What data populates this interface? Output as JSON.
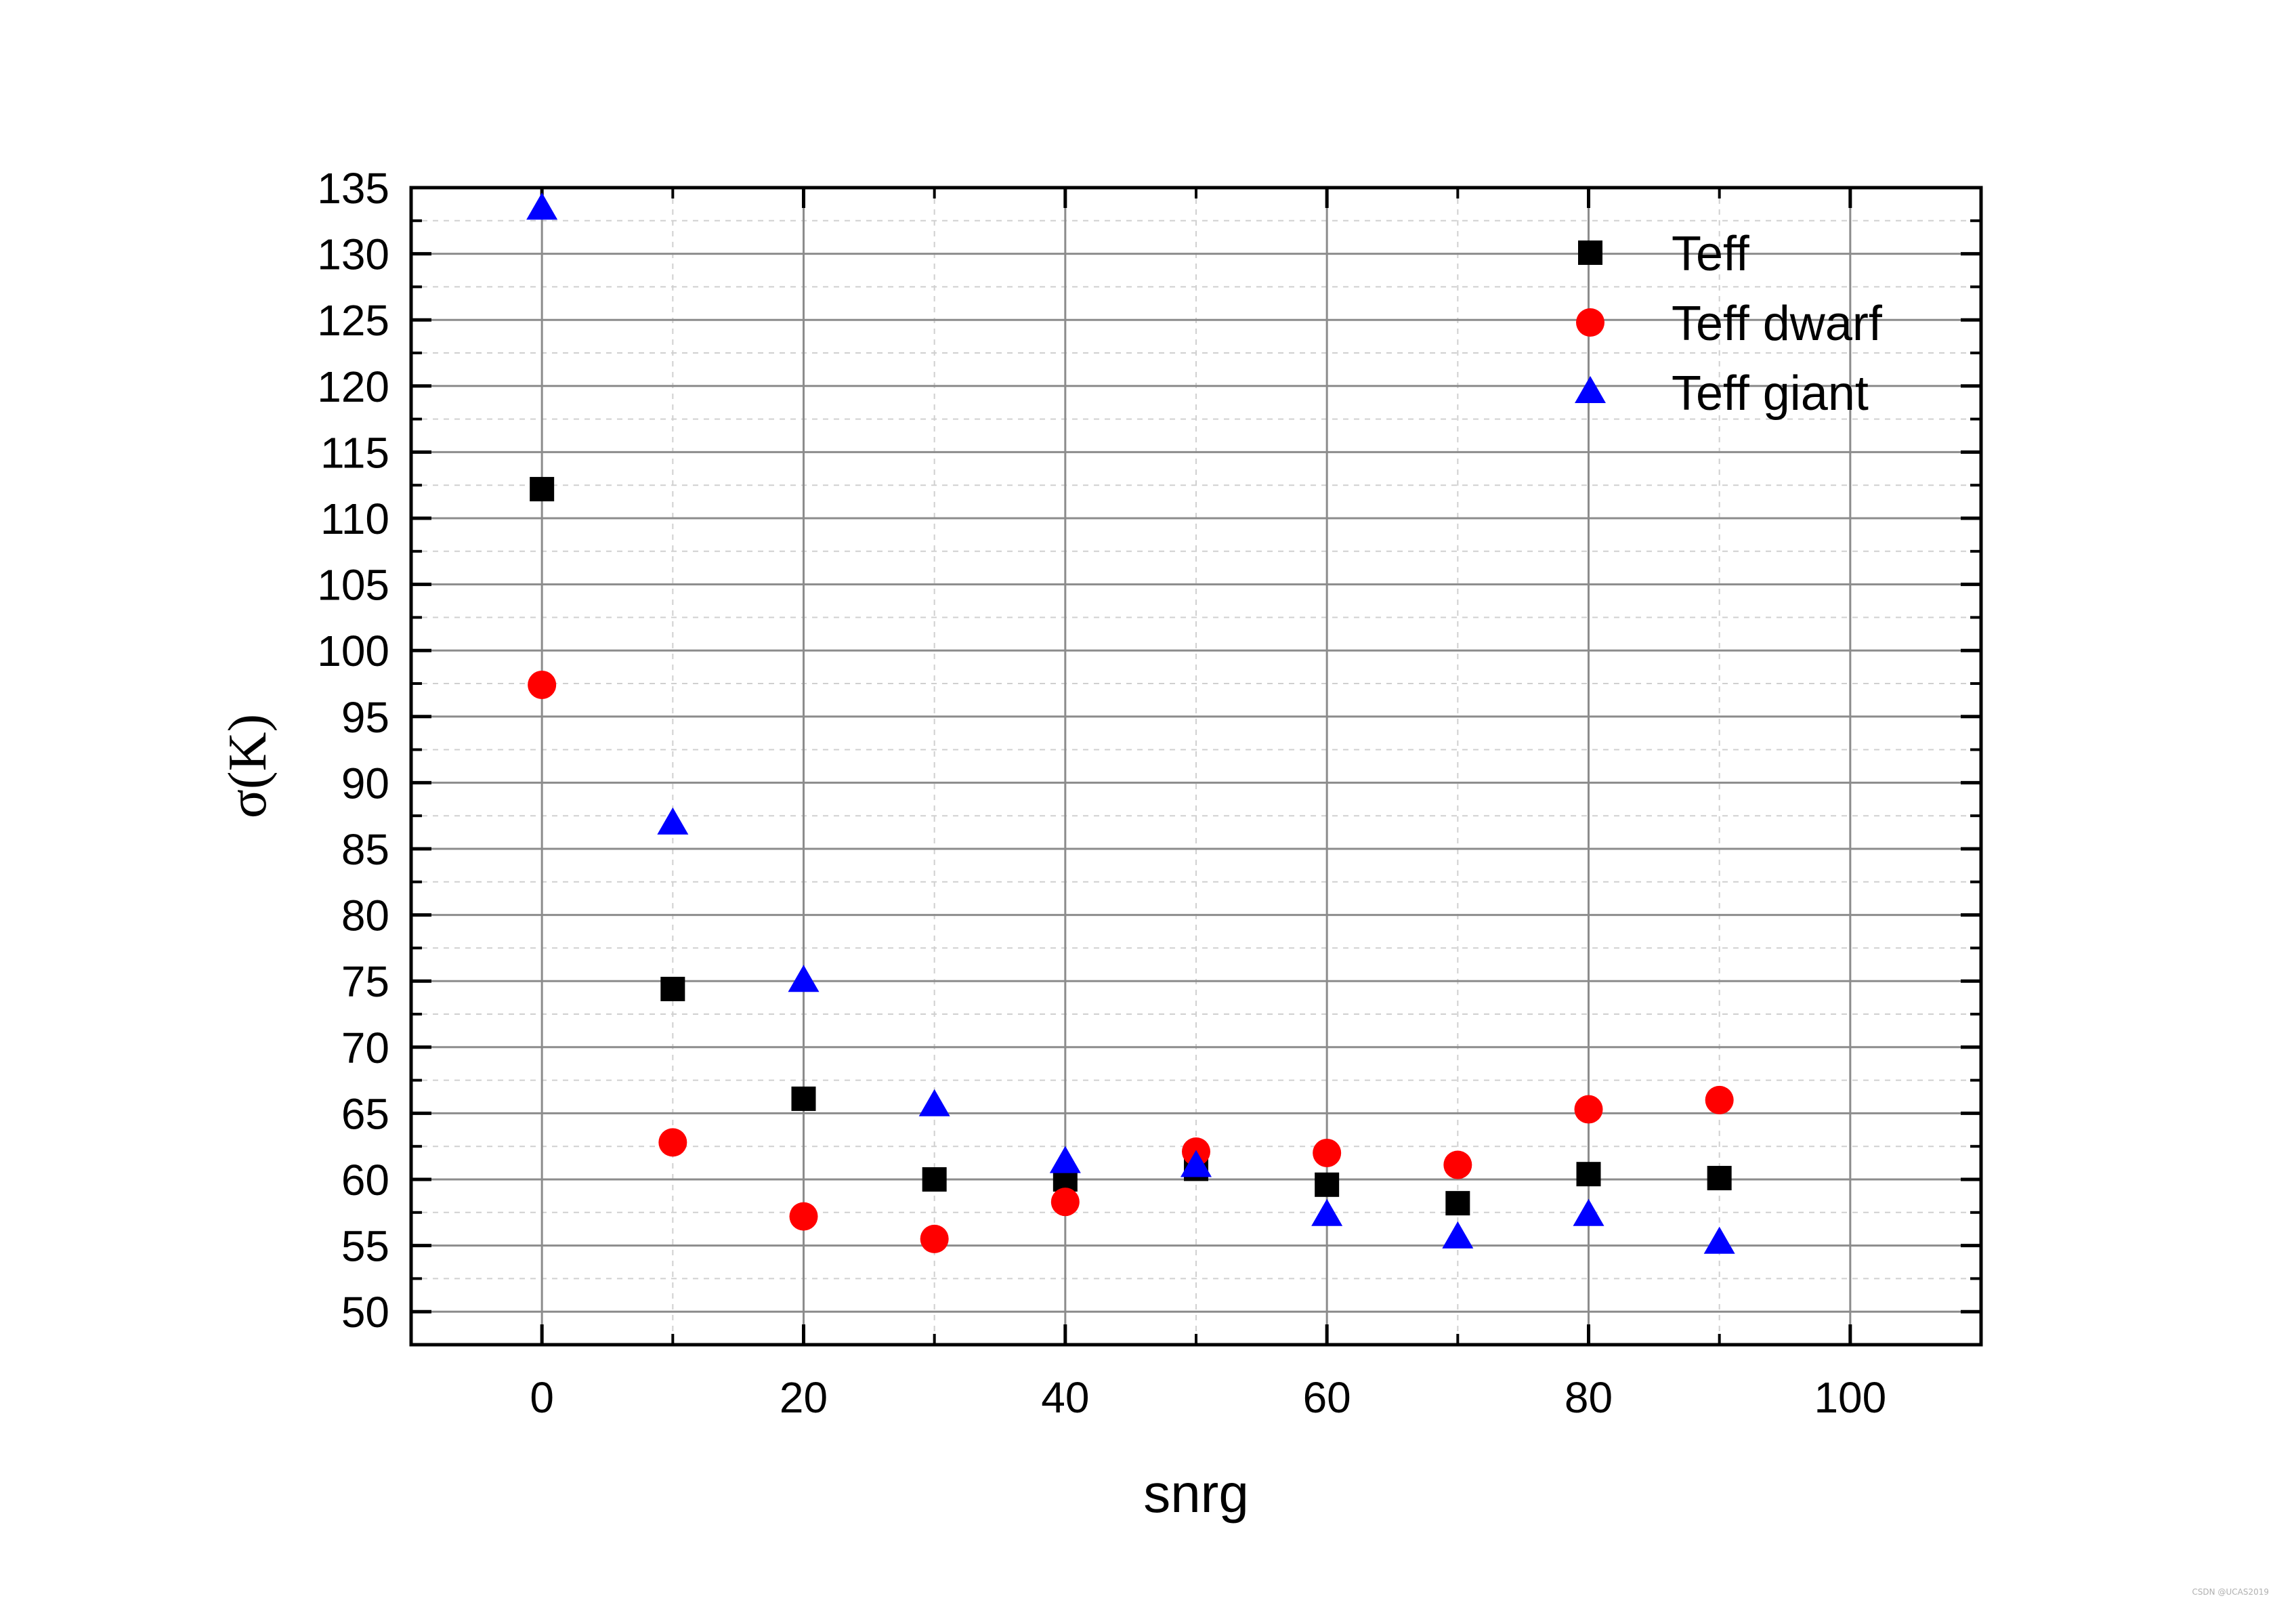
{
  "chart_data": {
    "type": "scatter",
    "xlabel": "snrg",
    "ylabel": "σ(K)",
    "xlim": [
      -10,
      110
    ],
    "ylim": [
      47.5,
      135
    ],
    "xticks": [
      0,
      20,
      40,
      60,
      80,
      100
    ],
    "yticks": [
      50,
      55,
      60,
      65,
      70,
      75,
      80,
      85,
      90,
      95,
      100,
      105,
      110,
      115,
      120,
      125,
      130,
      135
    ],
    "grid": true,
    "legend_position": "top-right",
    "x": [
      0,
      10,
      20,
      30,
      40,
      50,
      60,
      70,
      80,
      90
    ],
    "series": [
      {
        "name": "Teff",
        "marker": "square",
        "color": "#000000",
        "values": [
          112.2,
          74.4,
          66.1,
          60.0,
          60.0,
          60.8,
          59.6,
          58.2,
          60.4,
          60.1
        ]
      },
      {
        "name": "Teff dwarf",
        "marker": "circle",
        "color": "#ff0000",
        "values": [
          97.4,
          62.8,
          57.2,
          55.5,
          58.3,
          62.1,
          62.0,
          61.1,
          65.3,
          66.0
        ]
      },
      {
        "name": "Teff giant",
        "marker": "triangle",
        "color": "#0000ff",
        "values": [
          133.4,
          86.9,
          75.0,
          65.6,
          61.3,
          61.0,
          57.3,
          55.6,
          57.3,
          55.2
        ]
      }
    ]
  },
  "watermark": "CSDN @UCAS2019"
}
